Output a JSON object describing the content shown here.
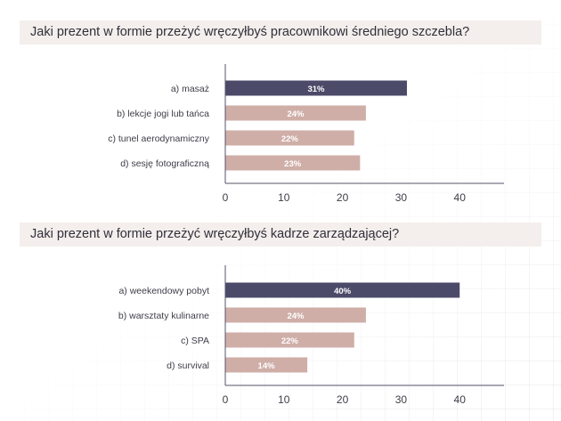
{
  "colors": {
    "highlight_bar": "#4b4a69",
    "regular_bar": "#cfaea8",
    "title_background": "#f4eeec",
    "text": "#2f2f3a"
  },
  "chart_data": [
    {
      "type": "bar",
      "orientation": "horizontal",
      "title": "Jaki prezent w formie przeżyć wręczyłbyś pracownikowi średniego szczebla?",
      "categories": [
        "a) masaż",
        "b) lekcje jogi lub tańca",
        "c) tunel aerodynamiczny",
        "d) sesję fotograficzną"
      ],
      "values": [
        31,
        24,
        22,
        23
      ],
      "value_labels": [
        "31%",
        "24%",
        "22%",
        "23%"
      ],
      "highlight_index": 0,
      "xlim": [
        0,
        47
      ],
      "xticks": [
        0,
        10,
        20,
        30,
        40
      ],
      "grid": false
    },
    {
      "type": "bar",
      "orientation": "horizontal",
      "title": "Jaki prezent w formie przeżyć wręczyłbyś kadrze zarządzającej?",
      "categories": [
        "a) weekendowy pobyt",
        "b) warsztaty kulinarne",
        "c) SPA",
        "d) survival"
      ],
      "values": [
        40,
        24,
        22,
        14
      ],
      "value_labels": [
        "40%",
        "24%",
        "22%",
        "14%"
      ],
      "highlight_index": 0,
      "xlim": [
        0,
        47
      ],
      "xticks": [
        0,
        10,
        20,
        30,
        40
      ],
      "grid": false
    }
  ]
}
